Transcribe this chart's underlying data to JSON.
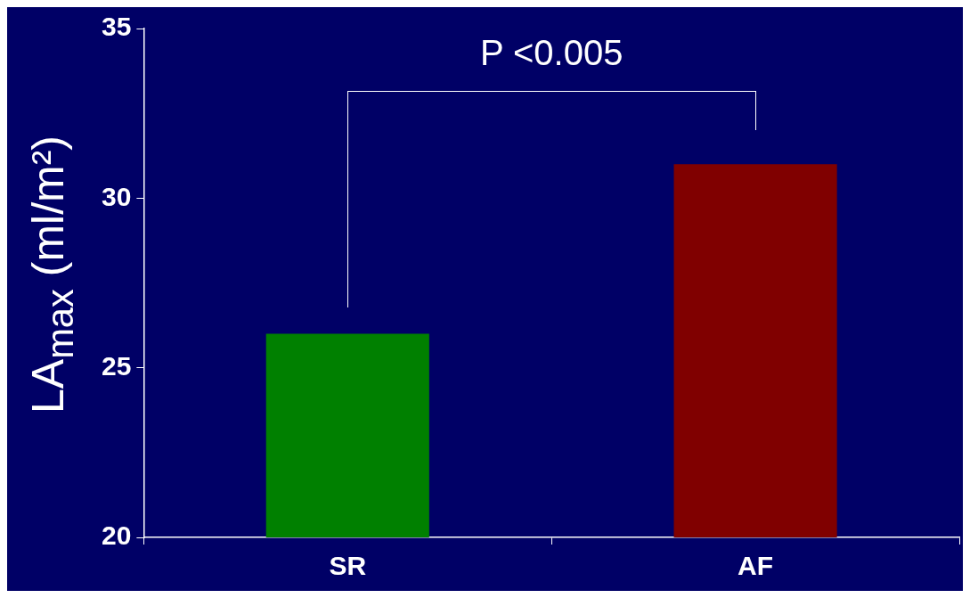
{
  "chart_data": {
    "type": "bar",
    "ylabel": "LA$_{max}$ (ml/m²)",
    "categories": [
      "SR",
      "AF"
    ],
    "series": [
      {
        "colors": [
          "#008000",
          "#800000"
        ],
        "values": [
          26,
          31
        ]
      }
    ],
    "ylim": [
      20,
      35
    ],
    "yticks": [
      20,
      25,
      30,
      35
    ],
    "grid": false,
    "legend": false,
    "annotations": [
      "P <0.005"
    ]
  }
}
